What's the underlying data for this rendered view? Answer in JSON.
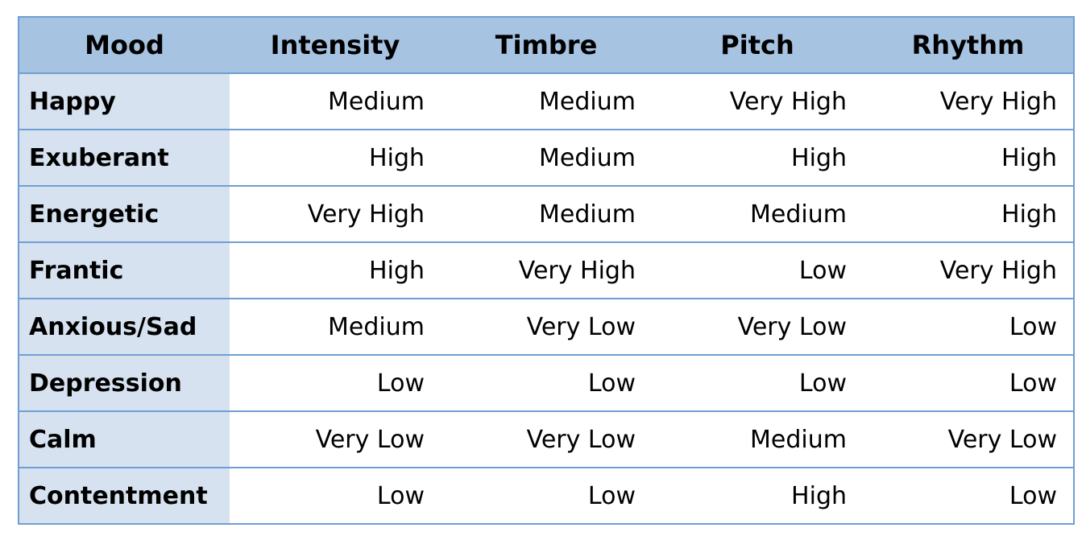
{
  "table": {
    "headers": [
      "Mood",
      "Intensity",
      "Timbre",
      "Pitch",
      "Rhythm"
    ],
    "rows": [
      [
        "Happy",
        "Medium",
        "Medium",
        "Very High",
        "Very High"
      ],
      [
        "Exuberant",
        "High",
        "Medium",
        "High",
        "High"
      ],
      [
        "Energetic",
        "Very High",
        "Medium",
        "Medium",
        "High"
      ],
      [
        "Frantic",
        "High",
        "Very High",
        "Low",
        "Very High"
      ],
      [
        "Anxious/Sad",
        "Medium",
        "Very Low",
        "Very Low",
        "Low"
      ],
      [
        "Depression",
        "Low",
        "Low",
        "Low",
        "Low"
      ],
      [
        "Calm",
        "Very Low",
        "Very Low",
        "Medium",
        "Very Low"
      ],
      [
        "Contentment",
        "Low",
        "Low",
        "High",
        "Low"
      ]
    ]
  },
  "colors": {
    "header_bg": "#a6c3e1",
    "first_column_bg": "#d6e2f0",
    "border": "#6f9fd2"
  }
}
